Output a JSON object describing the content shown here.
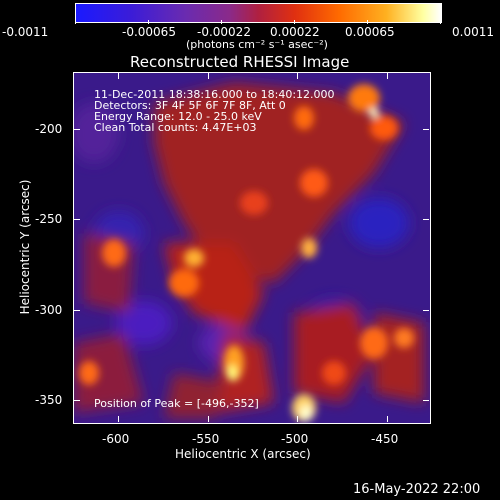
{
  "colorbar": {
    "ticks": [
      "-0.0011",
      "-0.00065",
      "-0.00022",
      "0.00022",
      "0.00065",
      "0.0011"
    ],
    "unit_label": "(photons cm⁻² s⁻¹ asec⁻²)"
  },
  "plot": {
    "title": "Reconstructed RHESSI Image",
    "info_lines": [
      "11-Dec-2011 18:38:16.000 to 18:40:12.000",
      "Detectors: 3F 4F 5F 6F 7F 8F, Att 0",
      "Energy Range: 12.0 - 25.0 keV",
      "Clean     Total counts: 4.47E+03"
    ],
    "peak_label": "Position of Peak = [-496,-352]",
    "xlabel": "Heliocentric X (arcsec)",
    "ylabel": "Heliocentric Y (arcsec)",
    "xticks": [
      "-600",
      "-550",
      "-500",
      "-450"
    ],
    "yticks": [
      "-200",
      "-250",
      "-300",
      "-350"
    ]
  },
  "footer": {
    "timestamp": "16-May-2022 22:00"
  }
}
